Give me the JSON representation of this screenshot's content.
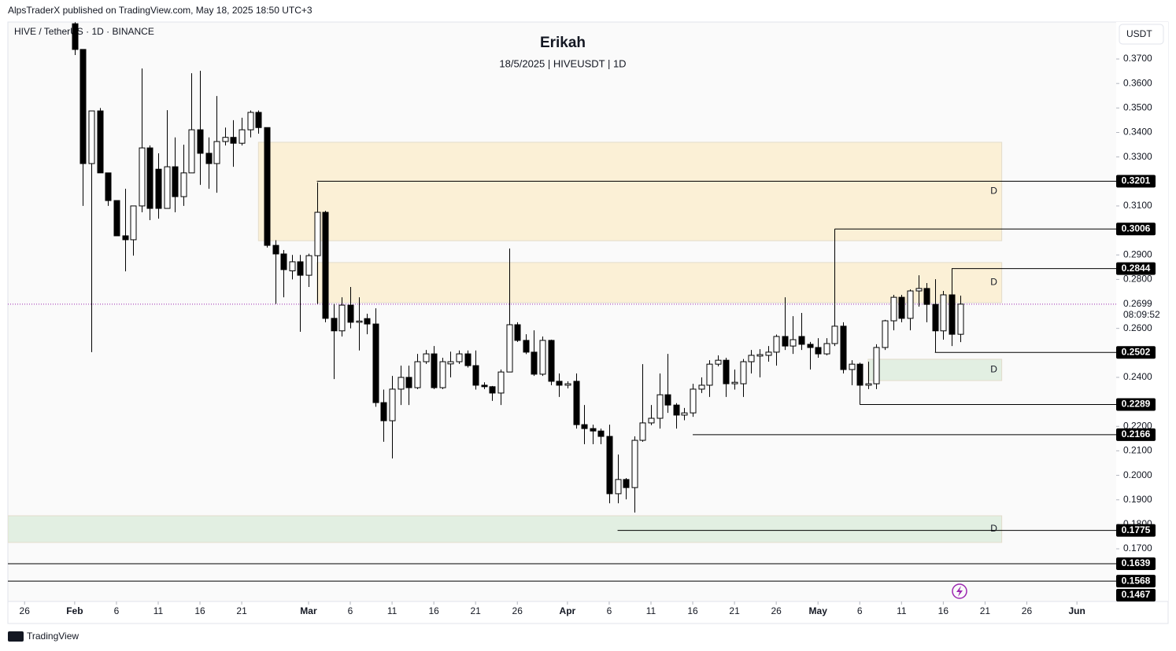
{
  "header": "AlpsTraderX published on TradingView.com, May 18, 2025 18:50 UTC+3",
  "footer": "TradingView",
  "chart_data": {
    "type": "candlestick",
    "symbol": "HIVE / TetherUS · 1D · BINANCE",
    "currency": "USDT",
    "title": "Erikah",
    "subtitle": "18/5/2025 | HIVEUSDT | 1D",
    "up_color": "#ffffff",
    "down_color": "#000000",
    "x": [
      6,
      7,
      8,
      9,
      10,
      11,
      12,
      13,
      14,
      15,
      16,
      17,
      18,
      19,
      20,
      21,
      22,
      23,
      24,
      25,
      26,
      27,
      28,
      29,
      30,
      31,
      32,
      33,
      34,
      35,
      36,
      37,
      38,
      39,
      40,
      41,
      42,
      43,
      44,
      45,
      46,
      47,
      48,
      49,
      50,
      51,
      52,
      53,
      54,
      55,
      56,
      57,
      58,
      59,
      60,
      61,
      62,
      63,
      64,
      65,
      66,
      67,
      68,
      69,
      70,
      71,
      72,
      73,
      74,
      75,
      76,
      77,
      78,
      79,
      80,
      81,
      82,
      83,
      84,
      85,
      86,
      87,
      88,
      89,
      90,
      91,
      92,
      93,
      94,
      95,
      96,
      97,
      98,
      99,
      100,
      101,
      102,
      103,
      104,
      105,
      106,
      107,
      108,
      109,
      110,
      111,
      112
    ],
    "open": [
      0.3844,
      0.3739,
      0.3273,
      0.3488,
      0.3235,
      0.3122,
      0.2978,
      0.2962,
      0.31,
      0.3337,
      0.325,
      0.309,
      0.326,
      0.3138,
      0.3235,
      0.3411,
      0.3315,
      0.3273,
      0.3363,
      0.338,
      0.3356,
      0.3411,
      0.3482,
      0.342,
      0.2939,
      0.2904,
      0.2835,
      0.2872,
      0.2817,
      0.2897,
      0.3074,
      0.2641,
      0.259,
      0.2695,
      0.2625,
      0.264,
      0.2618,
      0.2297,
      0.2223,
      0.2352,
      0.24,
      0.2358,
      0.2464,
      0.2496,
      0.2358,
      0.2455,
      0.2464,
      0.2496,
      0.2448,
      0.2368,
      0.2362,
      0.2336,
      0.2422,
      0.2615,
      0.2551,
      0.2503,
      0.2413,
      0.2551,
      0.2384,
      0.2368,
      0.2384,
      0.2207,
      0.2191,
      0.2181,
      0.2159,
      0.1925,
      0.1983,
      0.195,
      0.2143,
      0.2214,
      0.2233,
      0.2329,
      0.2287,
      0.2246,
      0.2255,
      0.2352,
      0.2368,
      0.2454,
      0.247,
      0.2374,
      0.2374,
      0.2464,
      0.2487,
      0.249,
      0.2503,
      0.2567,
      0.2528,
      0.2567,
      0.2535,
      0.2522,
      0.2496,
      0.2538,
      0.2609,
      0.2432,
      0.2454,
      0.2368,
      0.2374,
      0.2522,
      0.2631,
      0.2727,
      0.2641,
      0.2753,
      0.2763,
      0.2698,
      0.259,
      0.2737,
      0.2576
    ],
    "high": [
      0.385,
      0.374,
      0.3488,
      0.35,
      0.3235,
      0.3122,
      0.317,
      0.31,
      0.3661,
      0.3347,
      0.3315,
      0.3491,
      0.338,
      0.335,
      0.3642,
      0.3652,
      0.338,
      0.3549,
      0.342,
      0.345,
      0.346,
      0.349,
      0.349,
      0.342,
      0.296,
      0.292,
      0.29,
      0.29,
      0.2905,
      0.3196,
      0.308,
      0.27,
      0.2727,
      0.2769,
      0.2727,
      0.266,
      0.2682,
      0.235,
      0.2406,
      0.2448,
      0.2448,
      0.2496,
      0.2512,
      0.2528,
      0.248,
      0.2505,
      0.251,
      0.251,
      0.251,
      0.238,
      0.2365,
      0.2432,
      0.2926,
      0.2625,
      0.2576,
      0.2592,
      0.2567,
      0.2554,
      0.2416,
      0.2384,
      0.2416,
      0.2287,
      0.2207,
      0.2191,
      0.2207,
      0.2085,
      0.1989,
      0.2159,
      0.2454,
      0.2287,
      0.2416,
      0.2496,
      0.2295,
      0.2275,
      0.2374,
      0.24,
      0.247,
      0.249,
      0.248,
      0.2432,
      0.2475,
      0.2512,
      0.2515,
      0.2528,
      0.2575,
      0.2727,
      0.265,
      0.2663,
      0.2545,
      0.256,
      0.256,
      0.3006,
      0.2625,
      0.247,
      0.246,
      0.2464,
      0.2535,
      0.2635,
      0.2737,
      0.2737,
      0.2759,
      0.2817,
      0.2785,
      0.2801,
      0.2753,
      0.2844,
      0.2734
    ],
    "low": [
      0.3716,
      0.31,
      0.2503,
      0.3235,
      0.31,
      0.2978,
      0.2833,
      0.2897,
      0.3074,
      0.3042,
      0.3048,
      0.309,
      0.3074,
      0.31,
      0.3235,
      0.3186,
      0.317,
      0.3154,
      0.3347,
      0.326,
      0.3347,
      0.338,
      0.3395,
      0.293,
      0.27,
      0.2727,
      0.28,
      0.2586,
      0.2769,
      0.27,
      0.2625,
      0.2393,
      0.2567,
      0.26,
      0.251,
      0.2576,
      0.228,
      0.2137,
      0.2069,
      0.2287,
      0.2287,
      0.2352,
      0.2455,
      0.2352,
      0.2352,
      0.24,
      0.2455,
      0.244,
      0.235,
      0.2352,
      0.2304,
      0.2287,
      0.2422,
      0.2545,
      0.2495,
      0.2406,
      0.2406,
      0.2368,
      0.232,
      0.2355,
      0.2191,
      0.2127,
      0.2127,
      0.2127,
      0.1886,
      0.1886,
      0.1902,
      0.1848,
      0.2137,
      0.2205,
      0.2191,
      0.2255,
      0.2191,
      0.2225,
      0.2239,
      0.2336,
      0.232,
      0.2445,
      0.232,
      0.235,
      0.232,
      0.2416,
      0.24,
      0.2464,
      0.2448,
      0.2512,
      0.2496,
      0.2512,
      0.2432,
      0.248,
      0.249,
      0.2528,
      0.2416,
      0.2368,
      0.2289,
      0.2352,
      0.2352,
      0.2512,
      0.2592,
      0.2625,
      0.2592,
      0.2689,
      0.2625,
      0.2502,
      0.2554,
      0.2528,
      0.2544
    ],
    "close": [
      0.3739,
      0.3273,
      0.3488,
      0.3235,
      0.3122,
      0.2978,
      0.2962,
      0.31,
      0.3337,
      0.309,
      0.309,
      0.326,
      0.3138,
      0.3235,
      0.3411,
      0.3315,
      0.3273,
      0.3363,
      0.338,
      0.3356,
      0.3411,
      0.3482,
      0.342,
      0.2939,
      0.2904,
      0.284,
      0.2872,
      0.2817,
      0.2897,
      0.3074,
      0.2641,
      0.259,
      0.2695,
      0.2625,
      0.263,
      0.2618,
      0.2297,
      0.2223,
      0.2352,
      0.24,
      0.2358,
      0.2464,
      0.2496,
      0.2358,
      0.2464,
      0.2464,
      0.2496,
      0.2448,
      0.2368,
      0.2362,
      0.2336,
      0.2422,
      0.2615,
      0.2551,
      0.2503,
      0.2413,
      0.2551,
      0.2384,
      0.2368,
      0.2374,
      0.2207,
      0.2191,
      0.2181,
      0.2159,
      0.1925,
      0.1983,
      0.195,
      0.2143,
      0.2214,
      0.2233,
      0.2329,
      0.2287,
      0.2246,
      0.2255,
      0.2352,
      0.2368,
      0.2454,
      0.247,
      0.2374,
      0.238,
      0.2464,
      0.249,
      0.2493,
      0.2503,
      0.2567,
      0.2528,
      0.2554,
      0.2535,
      0.2522,
      0.2496,
      0.2538,
      0.2609,
      0.2432,
      0.2454,
      0.2368,
      0.2374,
      0.2522,
      0.2631,
      0.2727,
      0.2641,
      0.2753,
      0.2763,
      0.2698,
      0.259,
      0.2737,
      0.2576,
      0.2699
    ],
    "xlim": [
      -2,
      130.7
    ],
    "ylim": [
      0.1485,
      0.3851
    ],
    "xticks": [
      {
        "value": 0,
        "label": "26"
      },
      {
        "value": 6,
        "label": "Feb"
      },
      {
        "value": 11,
        "label": "6"
      },
      {
        "value": 16,
        "label": "11"
      },
      {
        "value": 21,
        "label": "16"
      },
      {
        "value": 26,
        "label": "21"
      },
      {
        "value": 34,
        "label": "Mar"
      },
      {
        "value": 39,
        "label": "6"
      },
      {
        "value": 44,
        "label": "11"
      },
      {
        "value": 49,
        "label": "16"
      },
      {
        "value": 54,
        "label": "21"
      },
      {
        "value": 59,
        "label": "26"
      },
      {
        "value": 65,
        "label": "Apr"
      },
      {
        "value": 70,
        "label": "6"
      },
      {
        "value": 75,
        "label": "11"
      },
      {
        "value": 80,
        "label": "16"
      },
      {
        "value": 85,
        "label": "21"
      },
      {
        "value": 90,
        "label": "26"
      },
      {
        "value": 95,
        "label": "May"
      },
      {
        "value": 100,
        "label": "6"
      },
      {
        "value": 105,
        "label": "11"
      },
      {
        "value": 110,
        "label": "16"
      },
      {
        "value": 115,
        "label": "21"
      },
      {
        "value": 120,
        "label": "26"
      },
      {
        "value": 126,
        "label": "Jun"
      }
    ],
    "yticks": [
      {
        "value": 0.37,
        "label": "0.3700"
      },
      {
        "value": 0.36,
        "label": "0.3600"
      },
      {
        "value": 0.35,
        "label": "0.3500"
      },
      {
        "value": 0.34,
        "label": "0.3400"
      },
      {
        "value": 0.33,
        "label": "0.3300"
      },
      {
        "value": 0.31,
        "label": "0.3100"
      },
      {
        "value": 0.29,
        "label": "0.2900"
      },
      {
        "value": 0.28,
        "label": "0.2800"
      },
      {
        "value": 0.26,
        "label": "0.2600"
      },
      {
        "value": 0.24,
        "label": "0.2400"
      },
      {
        "value": 0.22,
        "label": "0.2200"
      },
      {
        "value": 0.21,
        "label": "0.2100"
      },
      {
        "value": 0.2,
        "label": "0.2000"
      },
      {
        "value": 0.19,
        "label": "0.1900"
      },
      {
        "value": 0.18,
        "label": "0.1800"
      },
      {
        "value": 0.17,
        "label": "0.1700"
      }
    ],
    "zones": [
      {
        "x0": 28,
        "x1": 117,
        "top": 0.336,
        "bottom": 0.2958,
        "color": "#fbf0d6",
        "label": "D"
      },
      {
        "x0": 35,
        "x1": 117,
        "top": 0.2869,
        "bottom": 0.2705,
        "color": "#fbf0d6",
        "label": "D"
      },
      {
        "x0": 101,
        "x1": 117,
        "top": 0.2474,
        "bottom": 0.2387,
        "color": "#e2efe2",
        "label": "D"
      },
      {
        "x0": -2,
        "x1": 117,
        "top": 0.1835,
        "bottom": 0.1726,
        "color": "#e2efe2",
        "label": "D"
      }
    ],
    "levels": [
      {
        "value": 0.3201,
        "start": 35
      },
      {
        "value": 0.3006,
        "start": 97
      },
      {
        "value": 0.2844,
        "start": 111
      },
      {
        "value": 0.2502,
        "start": 109
      },
      {
        "value": 0.2289,
        "start": 100
      },
      {
        "value": 0.2166,
        "start": 80
      },
      {
        "value": 0.1775,
        "start": 71
      },
      {
        "value": 0.1639
      },
      {
        "value": 0.1568
      },
      {
        "value": 0.1467
      }
    ],
    "last_price": 0.2699,
    "last_price_color": "#9c27b0",
    "countdown": "08:09:52"
  }
}
